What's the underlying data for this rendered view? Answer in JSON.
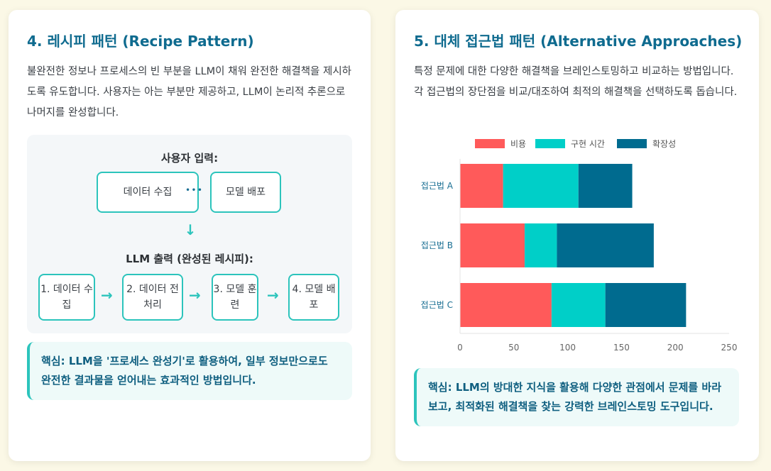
{
  "left_card": {
    "title": "4. 레시피 패턴 (Recipe Pattern)",
    "description": "불완전한 정보나 프로세스의 빈 부분을 LLM이 채워 완전한 해결책을 제시하도록 유도합니다. 사용자는 아는 부분만 제공하고, LLM이 논리적 추론으로 나머지를 완성합니다.",
    "diagram": {
      "input_heading": "사용자 입력:",
      "input_boxes": [
        "데이터 수집",
        "모델 배포"
      ],
      "ellipsis": "•••",
      "down_arrow": "↓",
      "output_heading": "LLM 출력 (완성된 레시피):",
      "steps": [
        "1. 데이터 수집",
        "2. 데이터 전처리",
        "3. 모델 훈련",
        "4. 모델 배포"
      ],
      "step_arrow": "→"
    },
    "callout": "핵심: LLM을 '프로세스 완성기'로 활용하여, 일부 정보만으로도 완전한 결과물을 얻어내는 효과적인 방법입니다."
  },
  "right_card": {
    "title": "5. 대체 접근법 패턴 (Alternative Approaches)",
    "description": "특정 문제에 대한 다양한 해결책을 브레인스토밍하고 비교하는 방법입니다. 각 접근법의 장단점을 비교/대조하여 최적의 해결책을 선택하도록 돕습니다.",
    "callout": "핵심: LLM의 방대한 지식을 활용해 다양한 관점에서 문제를 바라보고, 최적화된 해결책을 찾는 강력한 브레인스토밍 도구입니다."
  },
  "chart_data": {
    "type": "bar",
    "orientation": "horizontal",
    "stacked": true,
    "categories": [
      "접근법 A",
      "접근법 B",
      "접근법 C"
    ],
    "series": [
      {
        "name": "비용",
        "values": [
          40,
          60,
          85
        ],
        "color": "#ff5a5a"
      },
      {
        "name": "구현 시간",
        "values": [
          70,
          30,
          50
        ],
        "color": "#00cfc8"
      },
      {
        "name": "확장성",
        "values": [
          50,
          90,
          75
        ],
        "color": "#006b8f"
      }
    ],
    "xlim": [
      0,
      250
    ],
    "xticks": [
      0,
      50,
      100,
      150,
      200,
      250
    ],
    "legend_position": "top",
    "grid": false
  }
}
